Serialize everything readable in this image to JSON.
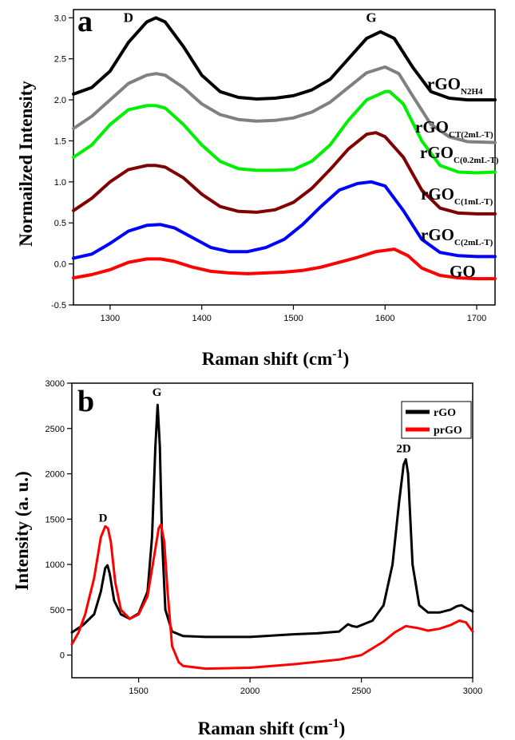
{
  "chart_data": [
    {
      "panel_label": "a",
      "type": "line",
      "xlabel": "Raman shift (cm",
      "xlabel_sup": "-1",
      "xlabel_tail": ")",
      "ylabel": "Normailzed Intensity",
      "xlim": [
        1260,
        1720
      ],
      "ylim": [
        -0.5,
        3.1
      ],
      "x_ticks": [
        1300,
        1400,
        1500,
        1600,
        1700
      ],
      "x_tick_labels": [
        "1300",
        "1400",
        "1500",
        "1600",
        "1700"
      ],
      "y_ticks": [
        -0.5,
        0.0,
        0.5,
        1.0,
        1.5,
        2.0,
        2.5,
        3.0
      ],
      "y_tick_labels": [
        "-0.5",
        "0.0",
        "0.5",
        "1.0",
        "1.5",
        "2.0",
        "2.5",
        "3.0"
      ],
      "peak_labels": [
        {
          "text": "D",
          "x": 1320,
          "y": 2.95
        },
        {
          "text": "G",
          "x": 1585,
          "y": 2.95
        }
      ],
      "series": [
        {
          "label_base": "rGO",
          "label_sub": "N2H4",
          "color": "#000000",
          "x": [
            1260,
            1280,
            1300,
            1320,
            1340,
            1350,
            1360,
            1380,
            1400,
            1420,
            1440,
            1460,
            1480,
            1500,
            1520,
            1540,
            1560,
            1580,
            1595,
            1610,
            1630,
            1650,
            1670,
            1690,
            1720
          ],
          "values": [
            2.07,
            2.15,
            2.35,
            2.7,
            2.95,
            3.0,
            2.95,
            2.65,
            2.3,
            2.1,
            2.03,
            2.01,
            2.02,
            2.05,
            2.12,
            2.25,
            2.5,
            2.75,
            2.83,
            2.75,
            2.4,
            2.1,
            2.02,
            2.0,
            2.0
          ]
        },
        {
          "label_base": "rGO",
          "label_sub": "CT(2mL-T)",
          "color": "#808080",
          "x": [
            1260,
            1280,
            1300,
            1320,
            1340,
            1350,
            1360,
            1380,
            1400,
            1420,
            1440,
            1460,
            1480,
            1500,
            1520,
            1540,
            1560,
            1580,
            1600,
            1615,
            1630,
            1650,
            1670,
            1690,
            1720
          ],
          "values": [
            1.65,
            1.8,
            2.0,
            2.2,
            2.3,
            2.32,
            2.3,
            2.15,
            1.95,
            1.82,
            1.76,
            1.74,
            1.75,
            1.78,
            1.85,
            1.97,
            2.15,
            2.33,
            2.4,
            2.32,
            2.05,
            1.7,
            1.55,
            1.49,
            1.48
          ]
        },
        {
          "label_base": "rGO",
          "label_sub": "C(0.2mL-T)",
          "color": "#00ee00",
          "x": [
            1260,
            1280,
            1300,
            1320,
            1340,
            1350,
            1360,
            1380,
            1400,
            1420,
            1440,
            1460,
            1480,
            1500,
            1520,
            1540,
            1560,
            1580,
            1600,
            1605,
            1620,
            1640,
            1660,
            1680,
            1700,
            1720
          ],
          "values": [
            1.3,
            1.45,
            1.7,
            1.88,
            1.93,
            1.93,
            1.9,
            1.7,
            1.45,
            1.25,
            1.16,
            1.14,
            1.14,
            1.15,
            1.25,
            1.45,
            1.75,
            2.0,
            2.1,
            2.1,
            1.95,
            1.5,
            1.2,
            1.12,
            1.11,
            1.12
          ]
        },
        {
          "label_base": "rGO",
          "label_sub": "C(1mL-T)",
          "color": "#800000",
          "x": [
            1260,
            1280,
            1300,
            1320,
            1340,
            1350,
            1360,
            1380,
            1400,
            1420,
            1440,
            1460,
            1480,
            1500,
            1520,
            1540,
            1560,
            1580,
            1590,
            1600,
            1620,
            1640,
            1660,
            1680,
            1700,
            1720
          ],
          "values": [
            0.65,
            0.8,
            1.0,
            1.15,
            1.2,
            1.2,
            1.18,
            1.05,
            0.85,
            0.7,
            0.64,
            0.63,
            0.66,
            0.75,
            0.92,
            1.15,
            1.4,
            1.58,
            1.6,
            1.55,
            1.3,
            0.9,
            0.68,
            0.62,
            0.61,
            0.61
          ]
        },
        {
          "label_base": "rGO",
          "label_sub": "C(2mL-T)",
          "color": "#0000ff",
          "x": [
            1260,
            1280,
            1300,
            1320,
            1340,
            1355,
            1370,
            1390,
            1410,
            1430,
            1450,
            1470,
            1490,
            1510,
            1530,
            1550,
            1570,
            1585,
            1600,
            1620,
            1640,
            1660,
            1680,
            1700,
            1720
          ],
          "values": [
            0.07,
            0.12,
            0.25,
            0.4,
            0.47,
            0.48,
            0.44,
            0.32,
            0.2,
            0.15,
            0.15,
            0.2,
            0.3,
            0.48,
            0.7,
            0.9,
            0.98,
            1.0,
            0.95,
            0.65,
            0.3,
            0.14,
            0.1,
            0.09,
            0.09
          ]
        },
        {
          "label_base": "GO",
          "label_sub": "",
          "color": "#ff0000",
          "x": [
            1260,
            1280,
            1300,
            1320,
            1340,
            1355,
            1370,
            1390,
            1410,
            1430,
            1450,
            1470,
            1490,
            1510,
            1530,
            1550,
            1570,
            1590,
            1610,
            1625,
            1640,
            1660,
            1680,
            1700,
            1720
          ],
          "values": [
            -0.17,
            -0.13,
            -0.07,
            0.02,
            0.06,
            0.06,
            0.03,
            -0.04,
            -0.09,
            -0.11,
            -0.12,
            -0.11,
            -0.1,
            -0.08,
            -0.04,
            0.02,
            0.08,
            0.15,
            0.18,
            0.1,
            -0.05,
            -0.14,
            -0.17,
            -0.18,
            -0.18
          ]
        }
      ]
    },
    {
      "panel_label": "b",
      "type": "line",
      "xlabel": "Raman shift (cm",
      "xlabel_sup": "-1",
      "xlabel_tail": ")",
      "ylabel": "Intensity (a. u.)",
      "xlim": [
        1200,
        3000
      ],
      "ylim": [
        -250,
        3000
      ],
      "x_ticks": [
        1500,
        2000,
        2500,
        3000
      ],
      "x_tick_labels": [
        "1500",
        "2000",
        "2500",
        "3000"
      ],
      "y_ticks": [
        0,
        500,
        1000,
        1500,
        2000,
        2500,
        3000
      ],
      "y_tick_labels": [
        "0",
        "500",
        "1000",
        "1500",
        "2000",
        "2500",
        "3000"
      ],
      "peak_labels": [
        {
          "text": "D",
          "x": 1340,
          "y": 1470
        },
        {
          "text": "G",
          "x": 1582,
          "y": 2860
        },
        {
          "text": "2D",
          "x": 2690,
          "y": 2240
        }
      ],
      "legend_position": "top-right",
      "series": [
        {
          "name": "rGO",
          "color": "#000000",
          "x": [
            1200,
            1250,
            1300,
            1330,
            1350,
            1360,
            1370,
            1390,
            1420,
            1460,
            1500,
            1540,
            1560,
            1575,
            1585,
            1595,
            1605,
            1620,
            1650,
            1700,
            1800,
            2000,
            2200,
            2300,
            2400,
            2440,
            2460,
            2480,
            2550,
            2600,
            2640,
            2670,
            2690,
            2700,
            2710,
            2730,
            2760,
            2800,
            2850,
            2900,
            2930,
            2950,
            2970,
            3000
          ],
          "values": [
            250,
            330,
            450,
            700,
            960,
            990,
            900,
            600,
            450,
            400,
            460,
            700,
            1300,
            2300,
            2760,
            2300,
            1300,
            500,
            260,
            210,
            200,
            200,
            230,
            240,
            260,
            340,
            320,
            310,
            380,
            550,
            1000,
            1700,
            2100,
            2160,
            2000,
            1000,
            550,
            470,
            470,
            500,
            540,
            550,
            520,
            480
          ]
        },
        {
          "name": "prGO",
          "color": "#ff0000",
          "x": [
            1200,
            1230,
            1260,
            1300,
            1330,
            1350,
            1362,
            1375,
            1395,
            1420,
            1460,
            1500,
            1540,
            1570,
            1590,
            1600,
            1615,
            1630,
            1650,
            1680,
            1700,
            1800,
            2000,
            2200,
            2400,
            2500,
            2600,
            2650,
            2700,
            2750,
            2800,
            2850,
            2900,
            2940,
            2970,
            3000
          ],
          "values": [
            120,
            250,
            450,
            850,
            1300,
            1420,
            1400,
            1250,
            800,
            500,
            400,
            450,
            650,
            1100,
            1400,
            1440,
            1250,
            700,
            100,
            -80,
            -120,
            -150,
            -140,
            -100,
            -50,
            0,
            150,
            250,
            320,
            300,
            270,
            290,
            330,
            380,
            360,
            260
          ]
        }
      ]
    }
  ]
}
